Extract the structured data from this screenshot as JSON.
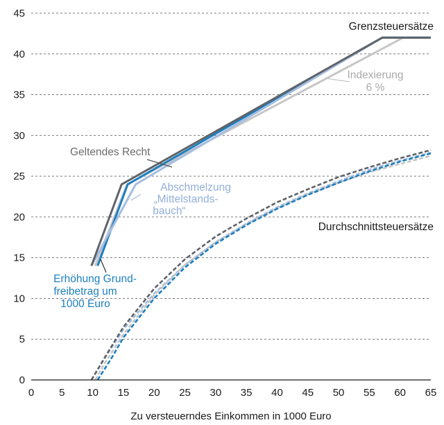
{
  "chart_data": {
    "type": "line",
    "title": "",
    "xlabel": "Zu versteuerndes Einkommen in 1000 Euro",
    "ylabel": "",
    "xlim": [
      0,
      65
    ],
    "ylim": [
      0,
      45
    ],
    "xticks": [
      0,
      5,
      10,
      15,
      20,
      25,
      30,
      35,
      40,
      45,
      50,
      55,
      60,
      65
    ],
    "yticks": [
      0,
      5,
      10,
      15,
      20,
      25,
      30,
      35,
      40,
      45
    ],
    "grid": "horizontal dashed",
    "colors": {
      "geltendes": "#5f6368",
      "indexierung": "#c6c6c6",
      "mittelstand": "#a5bde0",
      "grundfreibetrag": "#1d7fbf"
    },
    "series": [
      {
        "name": "Geltendes Recht",
        "kind": "marginal",
        "color": "#5f6368",
        "x": [
          9.8,
          14.7,
          57.1,
          65
        ],
        "y": [
          14,
          24,
          42,
          42
        ]
      },
      {
        "name": "Indexierung 6 %",
        "kind": "marginal",
        "color": "#c6c6c6",
        "x": [
          10.4,
          15.6,
          60.5,
          65
        ],
        "y": [
          14,
          24,
          42,
          42
        ]
      },
      {
        "name": "Abschmelzung „Mittelstandsbauch“",
        "kind": "marginal",
        "color": "#a5bde0",
        "x": [
          9.8,
          17.0,
          57.1,
          65
        ],
        "y": [
          14,
          24,
          42,
          42
        ]
      },
      {
        "name": "Erhöhung Grundfreibetrag um 1000 Euro",
        "kind": "marginal",
        "color": "#1d7fbf",
        "x": [
          10.8,
          15.7,
          57.1,
          65
        ],
        "y": [
          14,
          24,
          42,
          42
        ]
      },
      {
        "name": "Geltendes Recht",
        "kind": "average",
        "color": "#5f6368",
        "x": [
          9.8,
          12,
          15,
          20,
          25,
          30,
          35,
          40,
          45,
          50,
          55,
          60,
          65
        ],
        "y": [
          0,
          2.8,
          6.5,
          11.2,
          14.8,
          17.6,
          19.8,
          21.8,
          23.4,
          24.9,
          26.1,
          27.2,
          28.2
        ]
      },
      {
        "name": "Indexierung 6 %",
        "kind": "average",
        "color": "#c6c6c6",
        "x": [
          10.4,
          12,
          15,
          20,
          25,
          30,
          35,
          40,
          45,
          50,
          55,
          60,
          65
        ],
        "y": [
          0,
          2.1,
          5.6,
          10.4,
          14.1,
          16.9,
          19.1,
          21.1,
          22.8,
          24.2,
          25.5,
          26.5,
          27.5
        ]
      },
      {
        "name": "Abschmelzung „Mittelstandsbauch“",
        "kind": "average",
        "color": "#a5bde0",
        "x": [
          9.8,
          12,
          15,
          20,
          25,
          30,
          35,
          40,
          45,
          50,
          55,
          60,
          65
        ],
        "y": [
          0,
          2.7,
          6.2,
          10.6,
          14.1,
          16.9,
          19.2,
          21.2,
          22.9,
          24.4,
          25.8,
          26.9,
          27.9
        ]
      },
      {
        "name": "Erhöhung Grundfreibetrag um 1000 Euro",
        "kind": "average",
        "color": "#1d7fbf",
        "x": [
          10.8,
          13,
          15,
          20,
          25,
          30,
          35,
          40,
          45,
          50,
          55,
          60,
          65
        ],
        "y": [
          0,
          2.6,
          5.2,
          10.0,
          13.8,
          16.7,
          19.0,
          21.0,
          22.7,
          24.2,
          25.6,
          26.8,
          27.8
        ]
      }
    ],
    "annotations": {
      "grenz": "Grenzsteuersätze",
      "durchschnitt": "Durchschnittsteuersätze",
      "indexierung_1": "Indexierung",
      "indexierung_2": "6 %",
      "geltendes": "Geltendes Recht",
      "abschmelzung_1": "Abschmelzung",
      "abschmelzung_2": "„Mittelstands-",
      "abschmelzung_3": "bauch“",
      "grund_1": "Erhöhung Grund-",
      "grund_2": "freibetrag um",
      "grund_3": "1000 Euro"
    }
  }
}
